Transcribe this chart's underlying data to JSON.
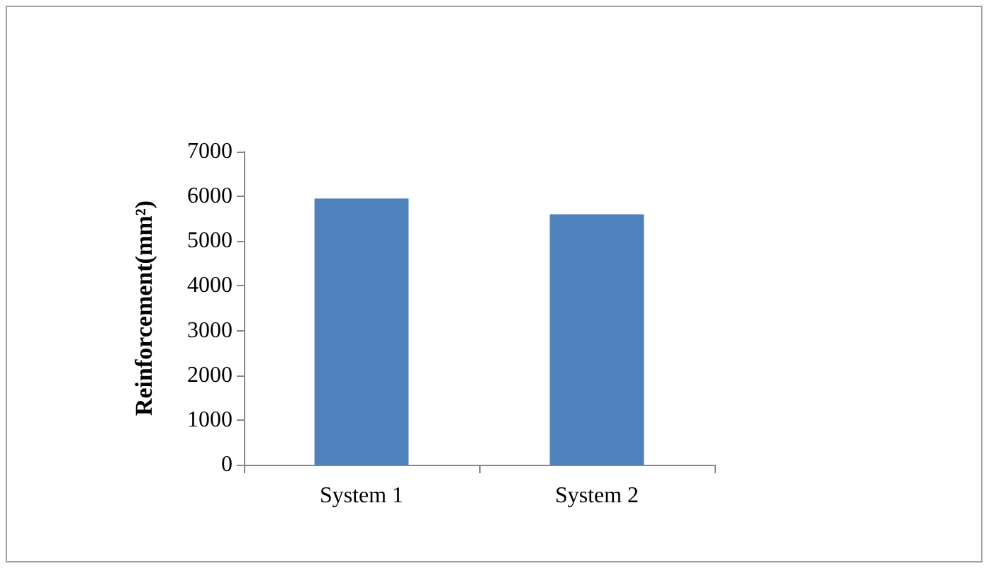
{
  "chart_data": {
    "type": "bar",
    "ylabel": "Reinforcement(mm²)",
    "categories": [
      "System 1",
      "System 2"
    ],
    "values": [
      5950,
      5600
    ],
    "color": "#4f81bd",
    "ylim": [
      0,
      7000
    ],
    "yticks": [
      0,
      1000,
      2000,
      3000,
      4000,
      5000,
      6000,
      7000
    ],
    "grid": false
  }
}
